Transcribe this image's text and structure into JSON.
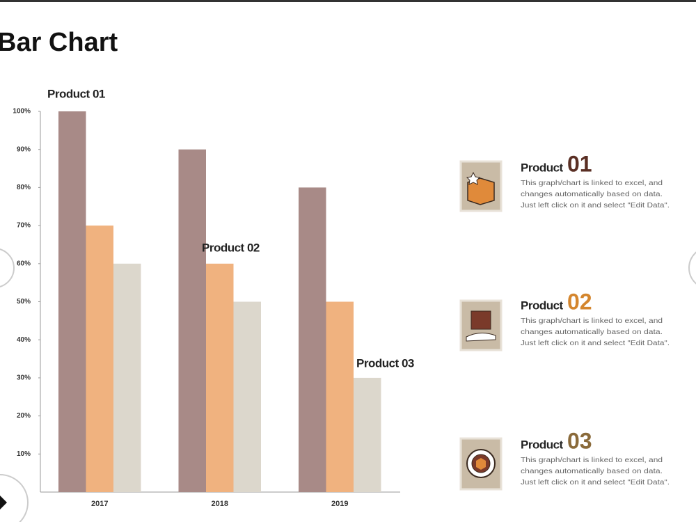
{
  "title": "Bar Chart",
  "chart_data": {
    "type": "bar",
    "categories": [
      "2017",
      "2018",
      "2019"
    ],
    "series": [
      {
        "name": "Product 01",
        "color": "#a88a87",
        "values": [
          100,
          90,
          80
        ]
      },
      {
        "name": "Product 02",
        "color": "#f0b27f",
        "values": [
          70,
          60,
          50
        ]
      },
      {
        "name": "Product 03",
        "color": "#dcd7cc",
        "values": [
          60,
          50,
          30
        ]
      }
    ],
    "ylim": [
      0,
      100
    ],
    "yticks": [
      {
        "value": 10,
        "label": "10%"
      },
      {
        "value": 20,
        "label": "20%"
      },
      {
        "value": 30,
        "label": "30%"
      },
      {
        "value": 40,
        "label": "40%"
      },
      {
        "value": 50,
        "label": "50%"
      },
      {
        "value": 60,
        "label": "60%"
      },
      {
        "value": 70,
        "label": "70%"
      },
      {
        "value": 80,
        "label": "80%"
      },
      {
        "value": 90,
        "label": "90%"
      },
      {
        "value": 100,
        "label": "100%"
      }
    ],
    "grid": false
  },
  "products": [
    {
      "label": "Product",
      "number": "01",
      "number_color": "#5a2f24",
      "description": [
        "This graph/chart is linked to excel, and",
        "changes automatically based on data.",
        "Just left click on it and select \"Edit Data\"."
      ]
    },
    {
      "label": "Product",
      "number": "02",
      "number_color": "#d4862e",
      "description": [
        "This graph/chart is linked to excel, and",
        "changes automatically based on data.",
        "Just left click on it and select \"Edit Data\"."
      ]
    },
    {
      "label": "Product",
      "number": "03",
      "number_color": "#8a6a3a",
      "description": [
        "This graph/chart is linked to excel, and",
        "changes automatically based on data.",
        "Just left click on it and select \"Edit Data\"."
      ]
    }
  ]
}
